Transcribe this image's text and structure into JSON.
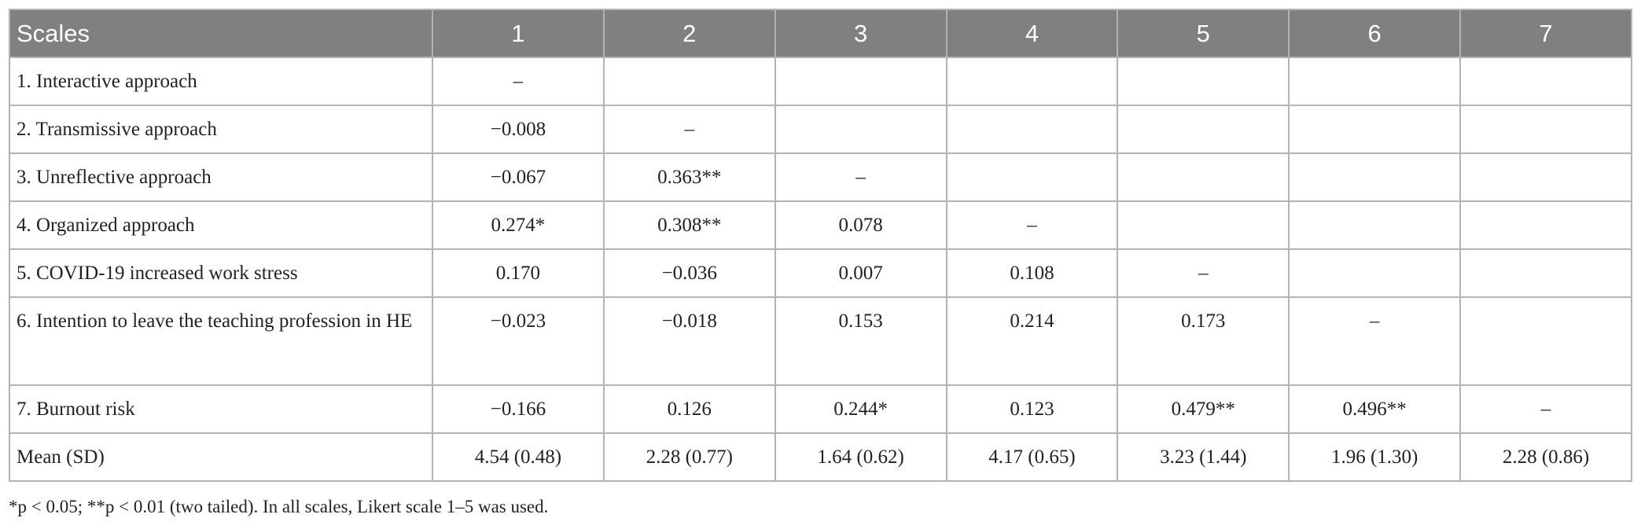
{
  "table": {
    "header": [
      "Scales",
      "1",
      "2",
      "3",
      "4",
      "5",
      "6",
      "7"
    ],
    "rows": [
      {
        "label": "1. Interactive approach",
        "cells": [
          "–"
        ]
      },
      {
        "label": "2. Transmissive approach",
        "cells": [
          "−0.008",
          "–"
        ]
      },
      {
        "label": "3. Unreflective approach",
        "cells": [
          "−0.067",
          "0.363**",
          "–"
        ]
      },
      {
        "label": "4. Organized approach",
        "cells": [
          "0.274*",
          "0.308**",
          "0.078",
          "–"
        ]
      },
      {
        "label": "5. COVID-19 increased work stress",
        "cells": [
          "0.170",
          "−0.036",
          "0.007",
          "0.108",
          "–"
        ]
      },
      {
        "label": "6. Intention to leave the teaching profession in HE",
        "cells": [
          "−0.023",
          "−0.018",
          "0.153",
          "0.214",
          "0.173",
          "–"
        ]
      },
      {
        "label": "7. Burnout risk",
        "cells": [
          "−0.166",
          "0.126",
          "0.244*",
          "0.123",
          "0.479**",
          "0.496**",
          "–"
        ]
      },
      {
        "label": "Mean (SD)",
        "cells": [
          "4.54 (0.48)",
          "2.28 (0.77)",
          "1.64 (0.62)",
          "4.17 (0.65)",
          "3.23 (1.44)",
          "1.96 (1.30)",
          "2.28 (0.86)"
        ]
      }
    ]
  },
  "footnote": "*p < 0.05; **p < 0.01 (two tailed). In all scales, Likert scale 1–5 was used."
}
